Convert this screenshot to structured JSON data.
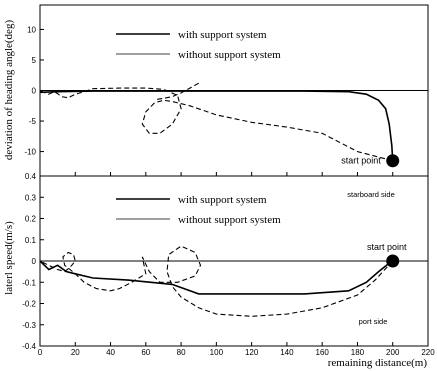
{
  "chart_data": [
    {
      "type": "line",
      "ylabel": "deviation of heading angle(deg)",
      "xlim": [
        0,
        220
      ],
      "ylim": [
        -14,
        14
      ],
      "y_ticks": [
        "10",
        "5",
        "0",
        "-5",
        "-10"
      ],
      "grid": false,
      "legend_position": "top",
      "series": [
        {
          "name": "with support system",
          "style": "solid",
          "color": "#000000",
          "x": [
            0,
            10,
            30,
            60,
            100,
            150,
            175,
            185,
            192,
            196,
            198,
            199.5,
            200
          ],
          "y": [
            -0.3,
            -0.2,
            -0.1,
            -0.1,
            -0.1,
            -0.1,
            -0.2,
            -0.6,
            -1.6,
            -3.0,
            -5.5,
            -9.0,
            -11.5
          ]
        },
        {
          "name": "without support system",
          "style": "dashed",
          "color": "#000000",
          "x": [
            200,
            180,
            160,
            140,
            120,
            100,
            85,
            75,
            70,
            65,
            60,
            58,
            62,
            68,
            75,
            80,
            78,
            70,
            60,
            45,
            30,
            25,
            20,
            16,
            12,
            10,
            8,
            5,
            2,
            0
          ],
          "y": [
            -11.5,
            -10,
            -7,
            -6,
            -5.2,
            -4,
            -2.5,
            -1.8,
            -1.6,
            -2,
            -3.5,
            -5.5,
            -7,
            -7,
            -5.5,
            -3,
            -0.8,
            0.2,
            0.4,
            0.4,
            0.3,
            -0.2,
            -0.6,
            -1.2,
            -1.0,
            -0.5,
            -0.2,
            -0.6,
            -0.3,
            0
          ]
        },
        {
          "name": "",
          "style": "dashed",
          "color": "#000000",
          "x": [
            90,
            85,
            80,
            75,
            70,
            65
          ],
          "y": [
            1.2,
            0.4,
            -0.4,
            -1.0,
            -1.3,
            -1.5
          ]
        }
      ],
      "annotations": [
        {
          "text": "start point",
          "x": 200,
          "y": -11.5
        }
      ]
    },
    {
      "type": "line",
      "xlabel": "remaining distance(m)",
      "ylabel": "laterl speed(m/s)",
      "xlim": [
        0,
        220
      ],
      "ylim": [
        -0.4,
        0.4
      ],
      "x_ticks": [
        "0",
        "20",
        "40",
        "60",
        "80",
        "100",
        "120",
        "140",
        "160",
        "180",
        "200",
        "220"
      ],
      "y_ticks": [
        "0.4",
        "0.3",
        "0.2",
        "0.1",
        "0",
        "-0.1",
        "-0.2",
        "-0.3",
        "-0.4"
      ],
      "grid": false,
      "legend_position": "top",
      "series": [
        {
          "name": "with support system",
          "style": "solid",
          "color": "#000000",
          "x": [
            0,
            5,
            10,
            15,
            20,
            30,
            50,
            75,
            90,
            120,
            150,
            175,
            185,
            192,
            198,
            200
          ],
          "y": [
            0,
            -0.04,
            -0.02,
            -0.05,
            -0.06,
            -0.08,
            -0.09,
            -0.11,
            -0.155,
            -0.155,
            -0.155,
            -0.14,
            -0.1,
            -0.05,
            -0.01,
            0
          ]
        },
        {
          "name": "without support system",
          "style": "dashed",
          "color": "#000000",
          "x": [
            200,
            190,
            180,
            160,
            140,
            120,
            100,
            90,
            80,
            75,
            72,
            73,
            80,
            88,
            91,
            88,
            78,
            68,
            62,
            58,
            60,
            52,
            45,
            40,
            32,
            25,
            20,
            17,
            14,
            13,
            16,
            19,
            20,
            17,
            14,
            10,
            5,
            0
          ],
          "y": [
            0,
            -0.09,
            -0.16,
            -0.22,
            -0.25,
            -0.26,
            -0.25,
            -0.22,
            -0.17,
            -0.12,
            -0.05,
            0.03,
            0.07,
            0.04,
            -0.02,
            -0.07,
            -0.1,
            -0.1,
            -0.05,
            0.02,
            -0.06,
            -0.1,
            -0.13,
            -0.14,
            -0.13,
            -0.1,
            -0.06,
            -0.04,
            -0.02,
            0.02,
            0.04,
            0.03,
            0,
            -0.03,
            -0.05,
            -0.04,
            -0.02,
            0
          ]
        }
      ],
      "annotations": [
        {
          "text": "start point",
          "x": 200,
          "y": 0
        },
        {
          "text": "starboard side"
        },
        {
          "text": "port side"
        }
      ]
    }
  ]
}
